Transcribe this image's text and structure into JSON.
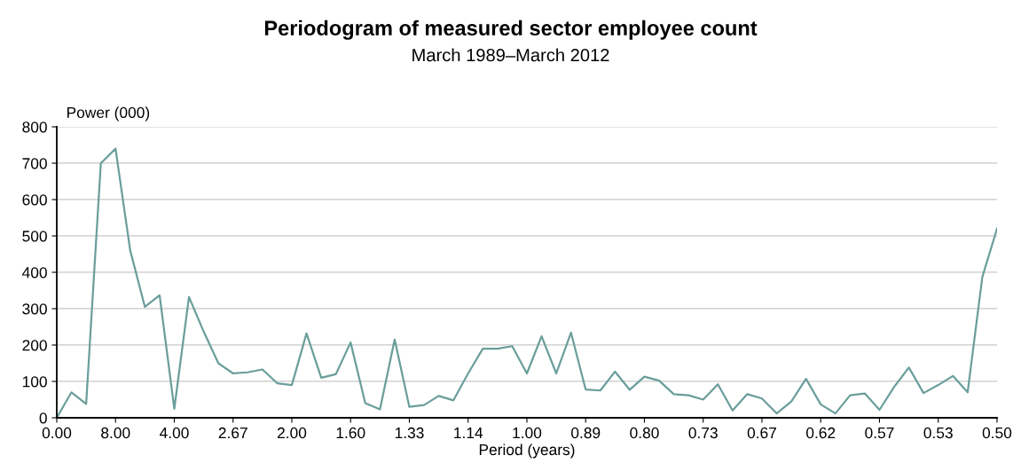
{
  "chart_data": {
    "type": "line",
    "title": "Periodogram of measured sector employee count",
    "subtitle": "March 1989–March 2012",
    "xlabel": "Period (years)",
    "ylabel": "Power (000)",
    "categories": [
      "0.00",
      null,
      null,
      null,
      "8.00",
      null,
      null,
      null,
      "4.00",
      null,
      null,
      null,
      "2.67",
      null,
      null,
      null,
      "2.00",
      null,
      null,
      null,
      "1.60",
      null,
      null,
      null,
      "1.33",
      null,
      null,
      null,
      "1.14",
      null,
      null,
      null,
      "1.00",
      null,
      null,
      null,
      "0.89",
      null,
      null,
      null,
      "0.80",
      null,
      null,
      null,
      "0.73",
      null,
      null,
      null,
      "0.67",
      null,
      null,
      null,
      "0.62",
      null,
      null,
      null,
      "0.57",
      null,
      null,
      null,
      "0.53",
      null,
      null,
      null,
      "0.50"
    ],
    "series": [
      {
        "color": "#6a9e9b",
        "values": [
          0,
          70,
          38,
          700,
          740,
          460,
          305,
          337,
          25,
          332,
          237,
          150,
          122,
          125,
          133,
          95,
          90,
          232,
          110,
          120,
          207,
          40,
          23,
          215,
          30,
          35,
          60,
          48,
          122,
          190,
          190,
          197,
          122,
          224,
          122,
          234,
          78,
          75,
          127,
          77,
          113,
          102,
          65,
          62,
          50,
          92,
          20,
          65,
          53,
          12,
          45,
          107,
          37,
          12,
          62,
          67,
          22,
          85,
          138,
          68,
          90,
          115,
          70,
          387,
          520
        ]
      }
    ],
    "ylim": [
      0,
      800
    ],
    "yticks": [
      0,
      100,
      200,
      300,
      400,
      500,
      600,
      700,
      800
    ],
    "grid": "y",
    "marker": "none",
    "line_style": "solid"
  }
}
